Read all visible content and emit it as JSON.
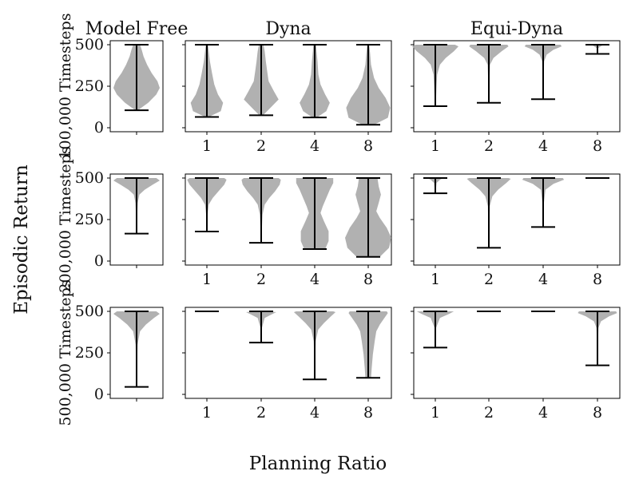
{
  "chart_data": {
    "type": "violin-grid",
    "title": "",
    "xlabel": "Planning Ratio",
    "ylabel": "Episodic Return",
    "ylim": [
      0,
      500
    ],
    "yticks": [
      "0",
      "250",
      "500"
    ],
    "columns": [
      {
        "key": "model_free",
        "title": "Model Free",
        "categories": [
          ""
        ]
      },
      {
        "key": "dyna",
        "title": "Dyna",
        "categories": [
          "1",
          "2",
          "4",
          "8"
        ]
      },
      {
        "key": "equi_dyna",
        "title": "Equi-Dyna",
        "categories": [
          "1",
          "2",
          "4",
          "8"
        ]
      }
    ],
    "rows": [
      {
        "label": "100,000 Timesteps",
        "panels": {
          "model_free": [
            {
              "min": 105,
              "max": 500,
              "profile": [
                [
                  105,
                  0.05
                ],
                [
                  150,
                  0.5
                ],
                [
                  200,
                  0.85
                ],
                [
                  240,
                  1.0
                ],
                [
                  280,
                  0.9
                ],
                [
                  330,
                  0.65
                ],
                [
                  380,
                  0.45
                ],
                [
                  430,
                  0.3
                ],
                [
                  470,
                  0.22
                ],
                [
                  500,
                  0.15
                ]
              ]
            }
          ],
          "dyna": [
            {
              "min": 65,
              "max": 500,
              "profile": [
                [
                  65,
                  0.08
                ],
                [
                  100,
                  0.6
                ],
                [
                  150,
                  0.7
                ],
                [
                  200,
                  0.48
                ],
                [
                  260,
                  0.32
                ],
                [
                  330,
                  0.22
                ],
                [
                  400,
                  0.13
                ],
                [
                  460,
                  0.08
                ],
                [
                  500,
                  0.05
                ]
              ]
            },
            {
              "min": 75,
              "max": 500,
              "profile": [
                [
                  75,
                  0.08
                ],
                [
                  120,
                  0.4
                ],
                [
                  170,
                  0.75
                ],
                [
                  220,
                  0.55
                ],
                [
                  280,
                  0.32
                ],
                [
                  340,
                  0.26
                ],
                [
                  400,
                  0.2
                ],
                [
                  460,
                  0.15
                ],
                [
                  500,
                  0.1
                ]
              ]
            },
            {
              "min": 62,
              "max": 500,
              "profile": [
                [
                  62,
                  0.1
                ],
                [
                  100,
                  0.5
                ],
                [
                  150,
                  0.65
                ],
                [
                  200,
                  0.45
                ],
                [
                  260,
                  0.25
                ],
                [
                  320,
                  0.16
                ],
                [
                  400,
                  0.12
                ],
                [
                  460,
                  0.08
                ],
                [
                  500,
                  0.06
                ]
              ]
            },
            {
              "min": 18,
              "max": 500,
              "profile": [
                [
                  18,
                  0.25
                ],
                [
                  60,
                  0.85
                ],
                [
                  120,
                  0.95
                ],
                [
                  180,
                  0.75
                ],
                [
                  240,
                  0.45
                ],
                [
                  300,
                  0.25
                ],
                [
                  380,
                  0.12
                ],
                [
                  450,
                  0.08
                ],
                [
                  500,
                  0.04
                ]
              ]
            }
          ],
          "equi_dyna": [
            {
              "min": 130,
              "max": 500,
              "profile": [
                [
                  130,
                  0.02
                ],
                [
                  180,
                  0.03
                ],
                [
                  250,
                  0.05
                ],
                [
                  320,
                  0.08
                ],
                [
                  380,
                  0.2
                ],
                [
                  420,
                  0.45
                ],
                [
                  460,
                  0.8
                ],
                [
                  490,
                  1.0
                ],
                [
                  500,
                  0.85
                ]
              ]
            },
            {
              "min": 150,
              "max": 500,
              "profile": [
                [
                  150,
                  0.02
                ],
                [
                  300,
                  0.03
                ],
                [
                  380,
                  0.05
                ],
                [
                  420,
                  0.2
                ],
                [
                  460,
                  0.55
                ],
                [
                  490,
                  0.85
                ],
                [
                  500,
                  0.8
                ]
              ]
            },
            {
              "min": 172,
              "max": 500,
              "profile": [
                [
                  172,
                  0.02
                ],
                [
                  300,
                  0.02
                ],
                [
                  400,
                  0.04
                ],
                [
                  440,
                  0.15
                ],
                [
                  470,
                  0.45
                ],
                [
                  490,
                  0.8
                ],
                [
                  500,
                  0.75
                ]
              ]
            },
            {
              "min": 445,
              "max": 500,
              "profile": [
                [
                  445,
                  0.01
                ],
                [
                  480,
                  0.03
                ],
                [
                  495,
                  0.2
                ],
                [
                  500,
                  0.3
                ]
              ]
            }
          ]
        }
      },
      {
        "label": "200,000 Timesteps",
        "panels": {
          "model_free": [
            {
              "min": 165,
              "max": 500,
              "profile": [
                [
                  165,
                  0.02
                ],
                [
                  250,
                  0.02
                ],
                [
                  350,
                  0.05
                ],
                [
                  400,
                  0.12
                ],
                [
                  430,
                  0.35
                ],
                [
                  460,
                  0.7
                ],
                [
                  485,
                  1.0
                ],
                [
                  500,
                  0.85
                ]
              ]
            }
          ],
          "dyna": [
            {
              "min": 178,
              "max": 500,
              "profile": [
                [
                  178,
                  0.02
                ],
                [
                  280,
                  0.03
                ],
                [
                  340,
                  0.08
                ],
                [
                  380,
                  0.25
                ],
                [
                  420,
                  0.5
                ],
                [
                  460,
                  0.75
                ],
                [
                  490,
                  0.85
                ],
                [
                  500,
                  0.75
                ]
              ]
            },
            {
              "min": 110,
              "max": 500,
              "profile": [
                [
                  110,
                  0.02
                ],
                [
                  200,
                  0.03
                ],
                [
                  280,
                  0.06
                ],
                [
                  340,
                  0.15
                ],
                [
                  380,
                  0.35
                ],
                [
                  420,
                  0.6
                ],
                [
                  460,
                  0.8
                ],
                [
                  490,
                  0.85
                ],
                [
                  500,
                  0.75
                ]
              ]
            },
            {
              "min": 72,
              "max": 500,
              "profile": [
                [
                  72,
                  0.45
                ],
                [
                  120,
                  0.6
                ],
                [
                  180,
                  0.6
                ],
                [
                  240,
                  0.4
                ],
                [
                  290,
                  0.25
                ],
                [
                  330,
                  0.35
                ],
                [
                  380,
                  0.5
                ],
                [
                  430,
                  0.65
                ],
                [
                  470,
                  0.8
                ],
                [
                  500,
                  0.8
                ]
              ]
            },
            {
              "min": 25,
              "max": 500,
              "profile": [
                [
                  25,
                  0.5
                ],
                [
                  80,
                  0.9
                ],
                [
                  140,
                  1.0
                ],
                [
                  200,
                  0.8
                ],
                [
                  260,
                  0.5
                ],
                [
                  300,
                  0.35
                ],
                [
                  350,
                  0.45
                ],
                [
                  400,
                  0.55
                ],
                [
                  450,
                  0.45
                ],
                [
                  500,
                  0.4
                ]
              ]
            }
          ],
          "equi_dyna": [
            {
              "min": 408,
              "max": 500,
              "profile": [
                [
                  408,
                  0.01
                ],
                [
                  470,
                  0.05
                ],
                [
                  490,
                  0.2
                ],
                [
                  500,
                  0.35
                ]
              ]
            },
            {
              "min": 80,
              "max": 500,
              "profile": [
                [
                  80,
                  0.02
                ],
                [
                  200,
                  0.02
                ],
                [
                  330,
                  0.04
                ],
                [
                  390,
                  0.15
                ],
                [
                  430,
                  0.4
                ],
                [
                  470,
                  0.75
                ],
                [
                  495,
                  0.95
                ],
                [
                  500,
                  0.85
                ]
              ]
            },
            {
              "min": 205,
              "max": 500,
              "profile": [
                [
                  205,
                  0.02
                ],
                [
                  350,
                  0.03
                ],
                [
                  430,
                  0.1
                ],
                [
                  465,
                  0.45
                ],
                [
                  490,
                  0.9
                ],
                [
                  500,
                  0.85
                ]
              ]
            },
            {
              "min": 500,
              "max": 500,
              "profile": []
            }
          ]
        }
      },
      {
        "label": "500,000 Timesteps",
        "panels": {
          "model_free": [
            {
              "min": 45,
              "max": 500,
              "profile": [
                [
                  45,
                  0.02
                ],
                [
                  150,
                  0.02
                ],
                [
                  300,
                  0.04
                ],
                [
                  380,
                  0.15
                ],
                [
                  420,
                  0.4
                ],
                [
                  460,
                  0.75
                ],
                [
                  485,
                  1.0
                ],
                [
                  500,
                  0.85
                ]
              ]
            }
          ],
          "dyna": [
            {
              "min": 500,
              "max": 500,
              "profile": []
            },
            {
              "min": 312,
              "max": 500,
              "profile": [
                [
                  312,
                  0.02
                ],
                [
                  400,
                  0.03
                ],
                [
                  460,
                  0.15
                ],
                [
                  485,
                  0.5
                ],
                [
                  495,
                  0.65
                ],
                [
                  500,
                  0.3
                ]
              ]
            },
            {
              "min": 90,
              "max": 500,
              "profile": [
                [
                  90,
                  0.02
                ],
                [
                  200,
                  0.02
                ],
                [
                  320,
                  0.04
                ],
                [
                  390,
                  0.15
                ],
                [
                  430,
                  0.4
                ],
                [
                  470,
                  0.7
                ],
                [
                  495,
                  0.9
                ],
                [
                  500,
                  0.8
                ]
              ]
            },
            {
              "min": 100,
              "max": 500,
              "profile": [
                [
                  100,
                  0.12
                ],
                [
                  160,
                  0.15
                ],
                [
                  240,
                  0.2
                ],
                [
                  320,
                  0.28
                ],
                [
                  380,
                  0.35
                ],
                [
                  420,
                  0.5
                ],
                [
                  460,
                  0.7
                ],
                [
                  490,
                  0.85
                ],
                [
                  500,
                  0.8
                ]
              ]
            }
          ],
          "equi_dyna": [
            {
              "min": 282,
              "max": 500,
              "profile": [
                [
                  282,
                  0.01
                ],
                [
                  400,
                  0.03
                ],
                [
                  460,
                  0.2
                ],
                [
                  485,
                  0.6
                ],
                [
                  500,
                  0.8
                ]
              ]
            },
            {
              "min": 500,
              "max": 500,
              "profile": []
            },
            {
              "min": 500,
              "max": 500,
              "profile": []
            },
            {
              "min": 175,
              "max": 500,
              "profile": [
                [
                  175,
                  0.02
                ],
                [
                  300,
                  0.02
                ],
                [
                  400,
                  0.04
                ],
                [
                  440,
                  0.15
                ],
                [
                  470,
                  0.5
                ],
                [
                  490,
                  0.85
                ],
                [
                  500,
                  0.8
                ]
              ]
            }
          ]
        }
      }
    ]
  }
}
